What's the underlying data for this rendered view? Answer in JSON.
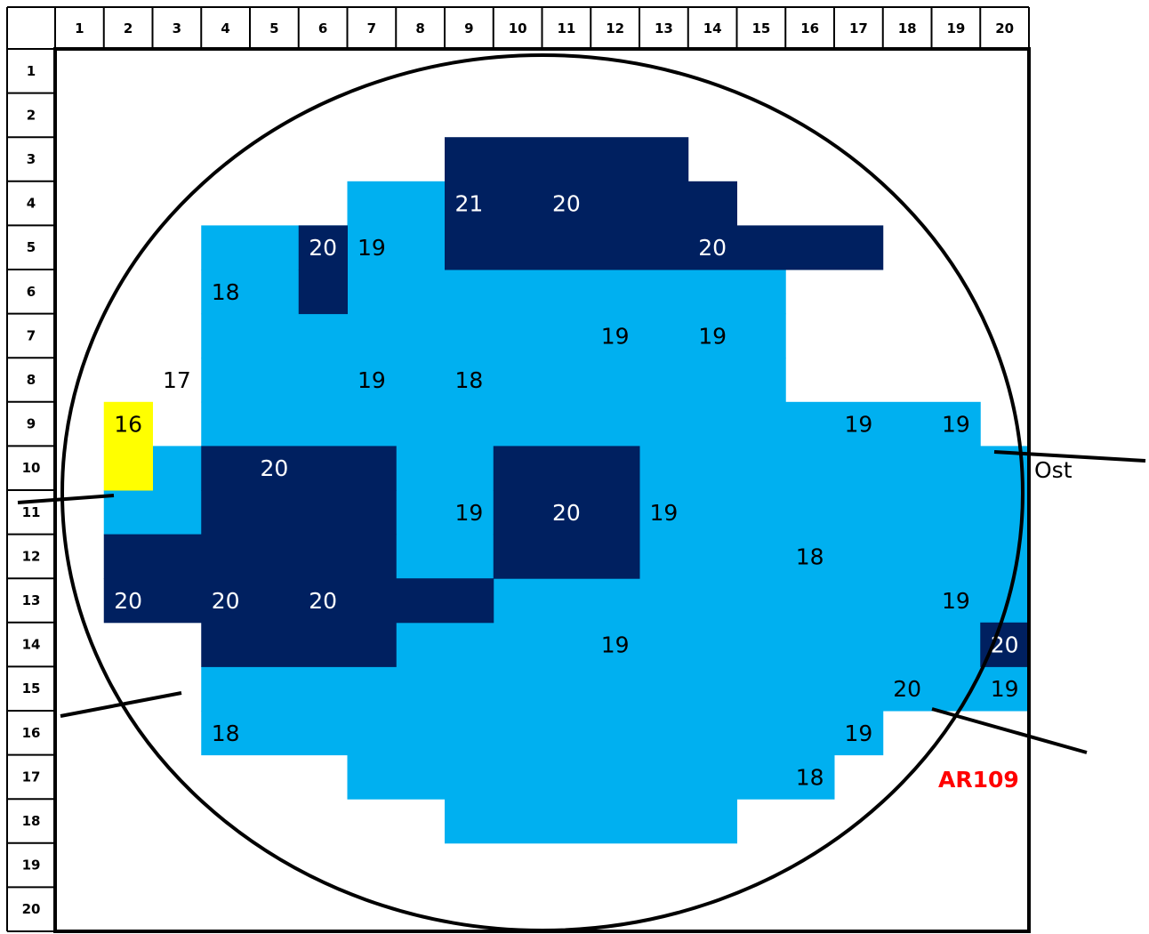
{
  "colors": {
    "light_blue": "#00b0f0",
    "dark_blue": "#002060",
    "yellow": "#ffff00",
    "grid_line": "#000000",
    "label_red": "#ff0000",
    "text_on_dark": "#ffffff",
    "text_on_light": "#000000"
  },
  "column_headers": [
    "1",
    "2",
    "3",
    "4",
    "5",
    "6",
    "7",
    "8",
    "9",
    "10",
    "11",
    "12",
    "13",
    "14",
    "15",
    "16",
    "17",
    "18",
    "19",
    "20"
  ],
  "row_headers": [
    "1",
    "2",
    "3",
    "4",
    "5",
    "6",
    "7",
    "8",
    "9",
    "10",
    "11",
    "12",
    "13",
    "14",
    "15",
    "16",
    "17",
    "18",
    "19",
    "20"
  ],
  "wafer_id": "AR109",
  "orientation_label": "Ost",
  "cell_fills": {
    "light": [
      [
        4,
        7,
        8
      ],
      [
        5,
        4,
        8
      ],
      [
        6,
        4,
        5
      ],
      [
        6,
        7,
        15
      ],
      [
        7,
        4,
        15
      ],
      [
        8,
        4,
        15
      ],
      [
        9,
        4,
        19
      ],
      [
        10,
        3,
        3
      ],
      [
        10,
        8,
        9
      ],
      [
        10,
        13,
        20
      ],
      [
        11,
        2,
        3
      ],
      [
        11,
        8,
        9
      ],
      [
        11,
        13,
        20
      ],
      [
        12,
        8,
        9
      ],
      [
        12,
        13,
        20
      ],
      [
        13,
        10,
        20
      ],
      [
        14,
        8,
        19
      ],
      [
        15,
        4,
        20
      ],
      [
        16,
        4,
        17
      ],
      [
        17,
        7,
        16
      ],
      [
        18,
        9,
        14
      ]
    ],
    "dark": [
      [
        3,
        9,
        13
      ],
      [
        4,
        9,
        14
      ],
      [
        5,
        6,
        6
      ],
      [
        5,
        9,
        17
      ],
      [
        6,
        6,
        6
      ],
      [
        10,
        4,
        7
      ],
      [
        10,
        10,
        12
      ],
      [
        11,
        4,
        7
      ],
      [
        11,
        10,
        12
      ],
      [
        12,
        2,
        7
      ],
      [
        12,
        10,
        12
      ],
      [
        13,
        2,
        9
      ],
      [
        14,
        4,
        7
      ],
      [
        14,
        20,
        20
      ]
    ],
    "yellow": [
      [
        9,
        2,
        2
      ],
      [
        10,
        2,
        2
      ]
    ]
  },
  "cell_values": [
    {
      "row": 4,
      "col": 9,
      "value": "21",
      "tone": "dark"
    },
    {
      "row": 4,
      "col": 11,
      "value": "20",
      "tone": "dark"
    },
    {
      "row": 5,
      "col": 6,
      "value": "20",
      "tone": "dark"
    },
    {
      "row": 5,
      "col": 7,
      "value": "19",
      "tone": "light"
    },
    {
      "row": 5,
      "col": 14,
      "value": "20",
      "tone": "dark"
    },
    {
      "row": 6,
      "col": 4,
      "value": "18",
      "tone": "light"
    },
    {
      "row": 7,
      "col": 12,
      "value": "19",
      "tone": "light"
    },
    {
      "row": 7,
      "col": 14,
      "value": "19",
      "tone": "light"
    },
    {
      "row": 8,
      "col": 3,
      "value": "17",
      "tone": "light"
    },
    {
      "row": 8,
      "col": 7,
      "value": "19",
      "tone": "light"
    },
    {
      "row": 8,
      "col": 9,
      "value": "18",
      "tone": "light"
    },
    {
      "row": 9,
      "col": 2,
      "value": "16",
      "tone": "light"
    },
    {
      "row": 9,
      "col": 17,
      "value": "19",
      "tone": "light"
    },
    {
      "row": 9,
      "col": 19,
      "value": "19",
      "tone": "light"
    },
    {
      "row": 10,
      "col": 5,
      "value": "20",
      "tone": "dark"
    },
    {
      "row": 11,
      "col": 9,
      "value": "19",
      "tone": "light"
    },
    {
      "row": 11,
      "col": 11,
      "value": "20",
      "tone": "dark"
    },
    {
      "row": 11,
      "col": 13,
      "value": "19",
      "tone": "light"
    },
    {
      "row": 12,
      "col": 16,
      "value": "18",
      "tone": "light"
    },
    {
      "row": 13,
      "col": 2,
      "value": "20",
      "tone": "dark"
    },
    {
      "row": 13,
      "col": 4,
      "value": "20",
      "tone": "dark"
    },
    {
      "row": 13,
      "col": 6,
      "value": "20",
      "tone": "dark"
    },
    {
      "row": 13,
      "col": 19,
      "value": "19",
      "tone": "light"
    },
    {
      "row": 14,
      "col": 12,
      "value": "19",
      "tone": "light"
    },
    {
      "row": 14,
      "col": 20,
      "value": "20",
      "tone": "dark"
    },
    {
      "row": 15,
      "col": 18,
      "value": "20",
      "tone": "light"
    },
    {
      "row": 15,
      "col": 20,
      "value": "19",
      "tone": "light"
    },
    {
      "row": 16,
      "col": 4,
      "value": "18",
      "tone": "light"
    },
    {
      "row": 16,
      "col": 17,
      "value": "19",
      "tone": "light"
    },
    {
      "row": 17,
      "col": 16,
      "value": "18",
      "tone": "light"
    }
  ]
}
